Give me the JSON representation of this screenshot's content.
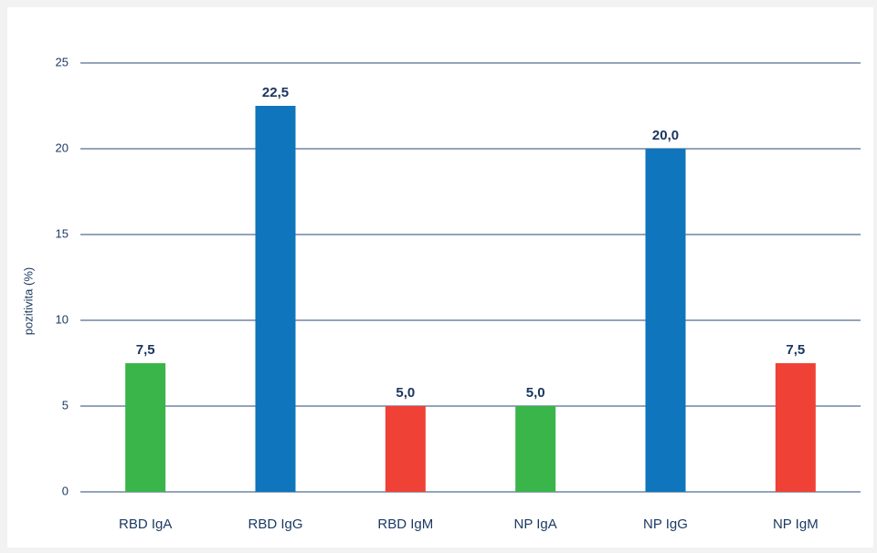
{
  "chart_data": {
    "type": "bar",
    "y_label": "pozitivita (%)",
    "categories": [
      "RBD IgA",
      "RBD IgG",
      "RBD IgM",
      "NP IgA",
      "NP IgG",
      "NP IgM"
    ],
    "values": [
      7.5,
      22.5,
      5.0,
      5.0,
      20.0,
      7.5
    ],
    "value_labels": [
      "7,5",
      "22,5",
      "5,0",
      "5,0",
      "20,0",
      "7,5"
    ],
    "colors": [
      "#3ab54a",
      "#0f75bc",
      "#ef4136",
      "#3ab54a",
      "#0f75bc",
      "#ef4136"
    ],
    "ylim": [
      0,
      25
    ],
    "yticks": [
      0,
      5,
      10,
      15,
      20,
      25
    ],
    "grid": true
  }
}
